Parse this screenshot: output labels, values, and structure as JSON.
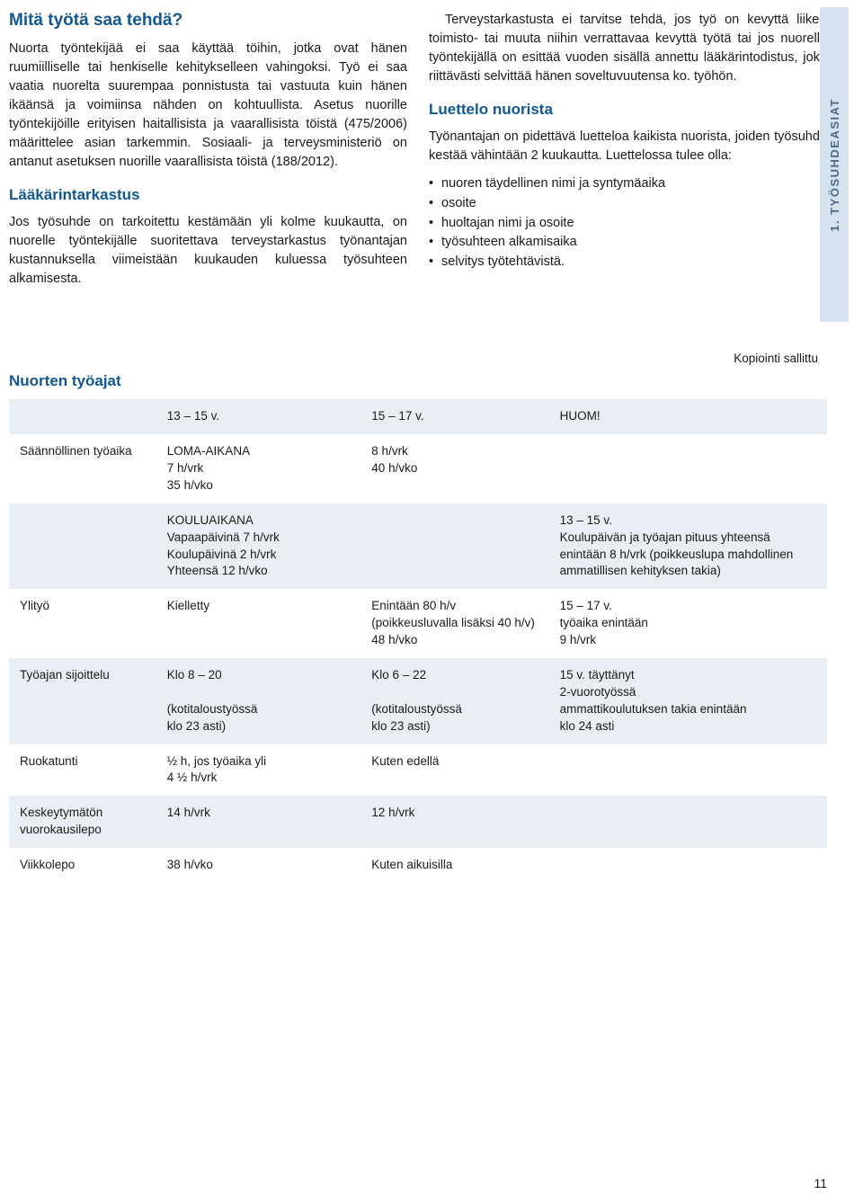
{
  "colors": {
    "heading": "#125790",
    "body_text": "#1a1a1a",
    "side_tab_bg": "#d6e2ee",
    "side_tab_text": "#4e6a87",
    "table_shade": "#e8eef4",
    "page_bg": "#ffffff"
  },
  "side_tab": "1. TYÖSUHDEASIAT",
  "left": {
    "title1": "Mitä työtä saa tehdä?",
    "p1": "Nuorta työntekijää ei saa käyttää töihin, jotka ovat hänen ruumiilliselle tai henkiselle kehitykselleen vahingoksi. Työ ei saa vaatia nuorelta suurempaa ponnistusta tai vastuuta kuin hänen ikäänsä ja voimiinsa nähden on kohtuullista. Asetus nuorille työntekijöille erityisen haitallisista ja vaarallisista töistä (475/2006) määrittelee asian tarkemmin. Sosiaali- ja terveysministeriö on antanut asetuksen nuorille vaarallisista töistä (188/2012).",
    "title2": "Lääkärintarkastus",
    "p2": "Jos työsuhde on tarkoitettu kestämään yli kolme kuukautta, on nuorelle työntekijälle suoritettava terveystarkastus työnantajan kustannuksella viimeistään kuukauden kuluessa työsuhteen alkamisesta."
  },
  "right": {
    "p1": "Terveystarkastusta ei tarvitse tehdä, jos työ on kevyttä liike-, toimisto- tai muuta niihin verrattavaa kevyttä työtä tai jos nuorella työntekijällä on esittää vuoden sisällä annettu lääkärintodistus, joka riittävästi selvittää hänen soveltuvuutensa ko. työhön.",
    "title1": "Luettelo nuorista",
    "p2": "Työnantajan on pidettävä luetteloa kaikista nuorista, joiden työsuhde kestää vähintään 2 kuukautta. Luettelossa tulee olla:",
    "bullets": [
      "nuoren täydellinen nimi ja syntymäaika",
      "osoite",
      "huoltajan nimi ja osoite",
      "työsuhteen alkamisaika",
      "selvitys työtehtävistä."
    ]
  },
  "copy_note": "Kopiointi sallittu",
  "table_title": "Nuorten työajat",
  "table": {
    "headers": [
      "",
      "13 – 15 v.",
      "15 – 17 v.",
      "HUOM!"
    ],
    "rows": [
      {
        "shaded": false,
        "cells": [
          "Säännöllinen työaika",
          "LOMA-AIKANA\n7 h/vrk\n35 h/vko",
          "8 h/vrk\n40 h/vko",
          ""
        ]
      },
      {
        "shaded": true,
        "cells": [
          "",
          "KOULUAIKANA\nVapaapäivinä 7 h/vrk\nKoulupäivinä 2 h/vrk\nYhteensä 12 h/vko",
          "",
          "13 – 15 v.\nKoulupäivän ja työajan pituus yhteensä enintään 8 h/vrk (poikkeuslupa mahdollinen ammatillisen kehityksen takia)"
        ]
      },
      {
        "shaded": false,
        "cells": [
          "Ylityö",
          "Kielletty",
          "Enintään 80 h/v\n(poikkeusluvalla lisäksi 40 h/v) 48 h/vko",
          "15 – 17 v.\ntyöaika enintään\n9 h/vrk"
        ]
      },
      {
        "shaded": true,
        "cells": [
          "Työajan sijoittelu",
          "Klo 8 – 20\n\n(kotitaloustyössä\nklo 23 asti)",
          "Klo 6 – 22\n\n(kotitaloustyössä\nklo 23 asti)",
          "15 v. täyttänyt\n2-vuorotyössä\nammattikoulutuksen takia enintään\nklo 24 asti"
        ]
      },
      {
        "shaded": false,
        "cells": [
          "Ruokatunti",
          "½ h, jos työaika yli\n4 ½ h/vrk",
          "Kuten edellä",
          ""
        ]
      },
      {
        "shaded": true,
        "cells": [
          "Keskeytymätön vuorokausilepo",
          "14 h/vrk",
          "12 h/vrk",
          ""
        ]
      },
      {
        "shaded": false,
        "cells": [
          "Viikkolepo",
          "38 h/vko",
          "Kuten aikuisilla",
          ""
        ]
      }
    ]
  },
  "page_number": "11"
}
